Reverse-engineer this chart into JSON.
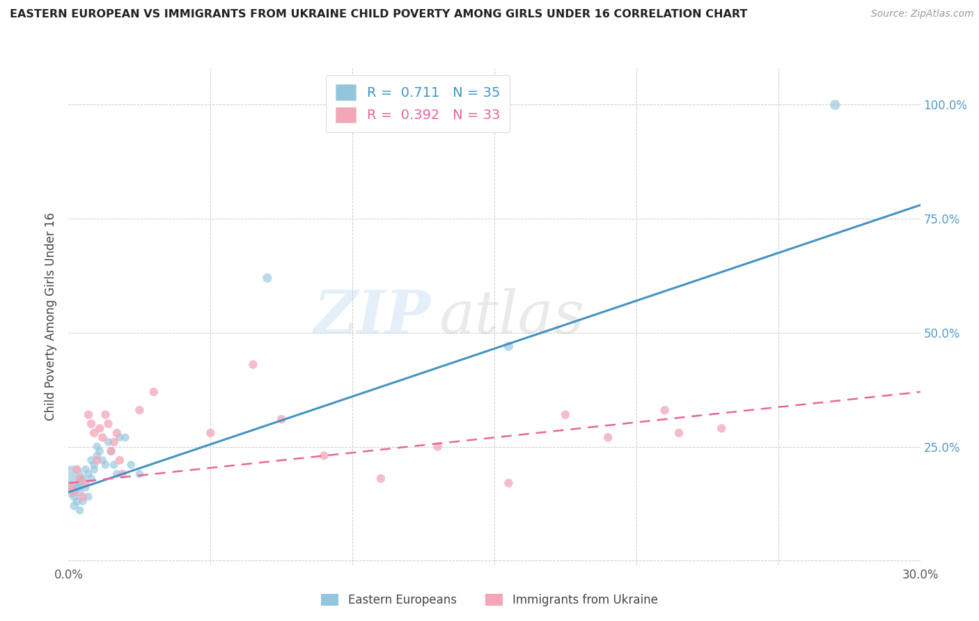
{
  "title": "EASTERN EUROPEAN VS IMMIGRANTS FROM UKRAINE CHILD POVERTY AMONG GIRLS UNDER 16 CORRELATION CHART",
  "source": "Source: ZipAtlas.com",
  "ylabel": "Child Poverty Among Girls Under 16",
  "xmin": 0.0,
  "xmax": 0.3,
  "ymin": -0.01,
  "ymax": 1.08,
  "yticks": [
    0.0,
    0.25,
    0.5,
    0.75,
    1.0
  ],
  "ytick_labels_right": [
    "",
    "25.0%",
    "50.0%",
    "75.0%",
    "100.0%"
  ],
  "blue_color": "#92c5de",
  "blue_color_line": "#4393c3",
  "pink_color": "#f4a5b8",
  "pink_color_line": "#e8659a",
  "R_blue": 0.711,
  "N_blue": 35,
  "R_pink": 0.392,
  "N_pink": 33,
  "watermark_zip": "ZIP",
  "watermark_atlas": "atlas",
  "legend_label_blue": "Eastern Europeans",
  "legend_label_pink": "Immigrants from Ukraine",
  "blue_line_x0": 0.0,
  "blue_line_y0": 0.15,
  "blue_line_x1": 0.3,
  "blue_line_y1": 0.78,
  "pink_line_x0": 0.0,
  "pink_line_y0": 0.17,
  "pink_line_x1": 0.3,
  "pink_line_y1": 0.37,
  "blue_scatter_x": [
    0.001,
    0.001,
    0.002,
    0.002,
    0.003,
    0.003,
    0.004,
    0.004,
    0.004,
    0.005,
    0.005,
    0.006,
    0.006,
    0.007,
    0.007,
    0.008,
    0.008,
    0.009,
    0.009,
    0.01,
    0.01,
    0.011,
    0.012,
    0.013,
    0.014,
    0.015,
    0.016,
    0.017,
    0.018,
    0.02,
    0.022,
    0.025,
    0.07,
    0.155,
    0.27
  ],
  "blue_scatter_y": [
    0.18,
    0.15,
    0.14,
    0.12,
    0.16,
    0.13,
    0.17,
    0.15,
    0.11,
    0.18,
    0.13,
    0.2,
    0.16,
    0.14,
    0.19,
    0.18,
    0.22,
    0.21,
    0.2,
    0.23,
    0.25,
    0.24,
    0.22,
    0.21,
    0.26,
    0.24,
    0.21,
    0.19,
    0.27,
    0.27,
    0.21,
    0.19,
    0.62,
    0.47,
    1.0
  ],
  "blue_scatter_size": [
    700,
    120,
    80,
    80,
    80,
    80,
    80,
    70,
    70,
    70,
    70,
    70,
    70,
    70,
    70,
    70,
    70,
    70,
    70,
    70,
    70,
    70,
    70,
    70,
    70,
    70,
    70,
    70,
    70,
    70,
    70,
    70,
    90,
    90,
    110
  ],
  "pink_scatter_x": [
    0.001,
    0.002,
    0.003,
    0.004,
    0.005,
    0.006,
    0.007,
    0.008,
    0.009,
    0.01,
    0.011,
    0.012,
    0.013,
    0.014,
    0.015,
    0.016,
    0.017,
    0.018,
    0.019,
    0.025,
    0.03,
    0.05,
    0.065,
    0.075,
    0.09,
    0.11,
    0.13,
    0.155,
    0.175,
    0.19,
    0.21,
    0.215,
    0.23
  ],
  "pink_scatter_y": [
    0.16,
    0.15,
    0.2,
    0.18,
    0.14,
    0.17,
    0.32,
    0.3,
    0.28,
    0.22,
    0.29,
    0.27,
    0.32,
    0.3,
    0.24,
    0.26,
    0.28,
    0.22,
    0.19,
    0.33,
    0.37,
    0.28,
    0.43,
    0.31,
    0.23,
    0.18,
    0.25,
    0.17,
    0.32,
    0.27,
    0.33,
    0.28,
    0.29
  ],
  "pink_scatter_size": [
    80,
    80,
    80,
    80,
    80,
    80,
    80,
    80,
    80,
    80,
    80,
    80,
    80,
    80,
    80,
    80,
    80,
    80,
    80,
    80,
    80,
    80,
    80,
    80,
    80,
    80,
    80,
    80,
    80,
    80,
    80,
    80,
    80
  ]
}
